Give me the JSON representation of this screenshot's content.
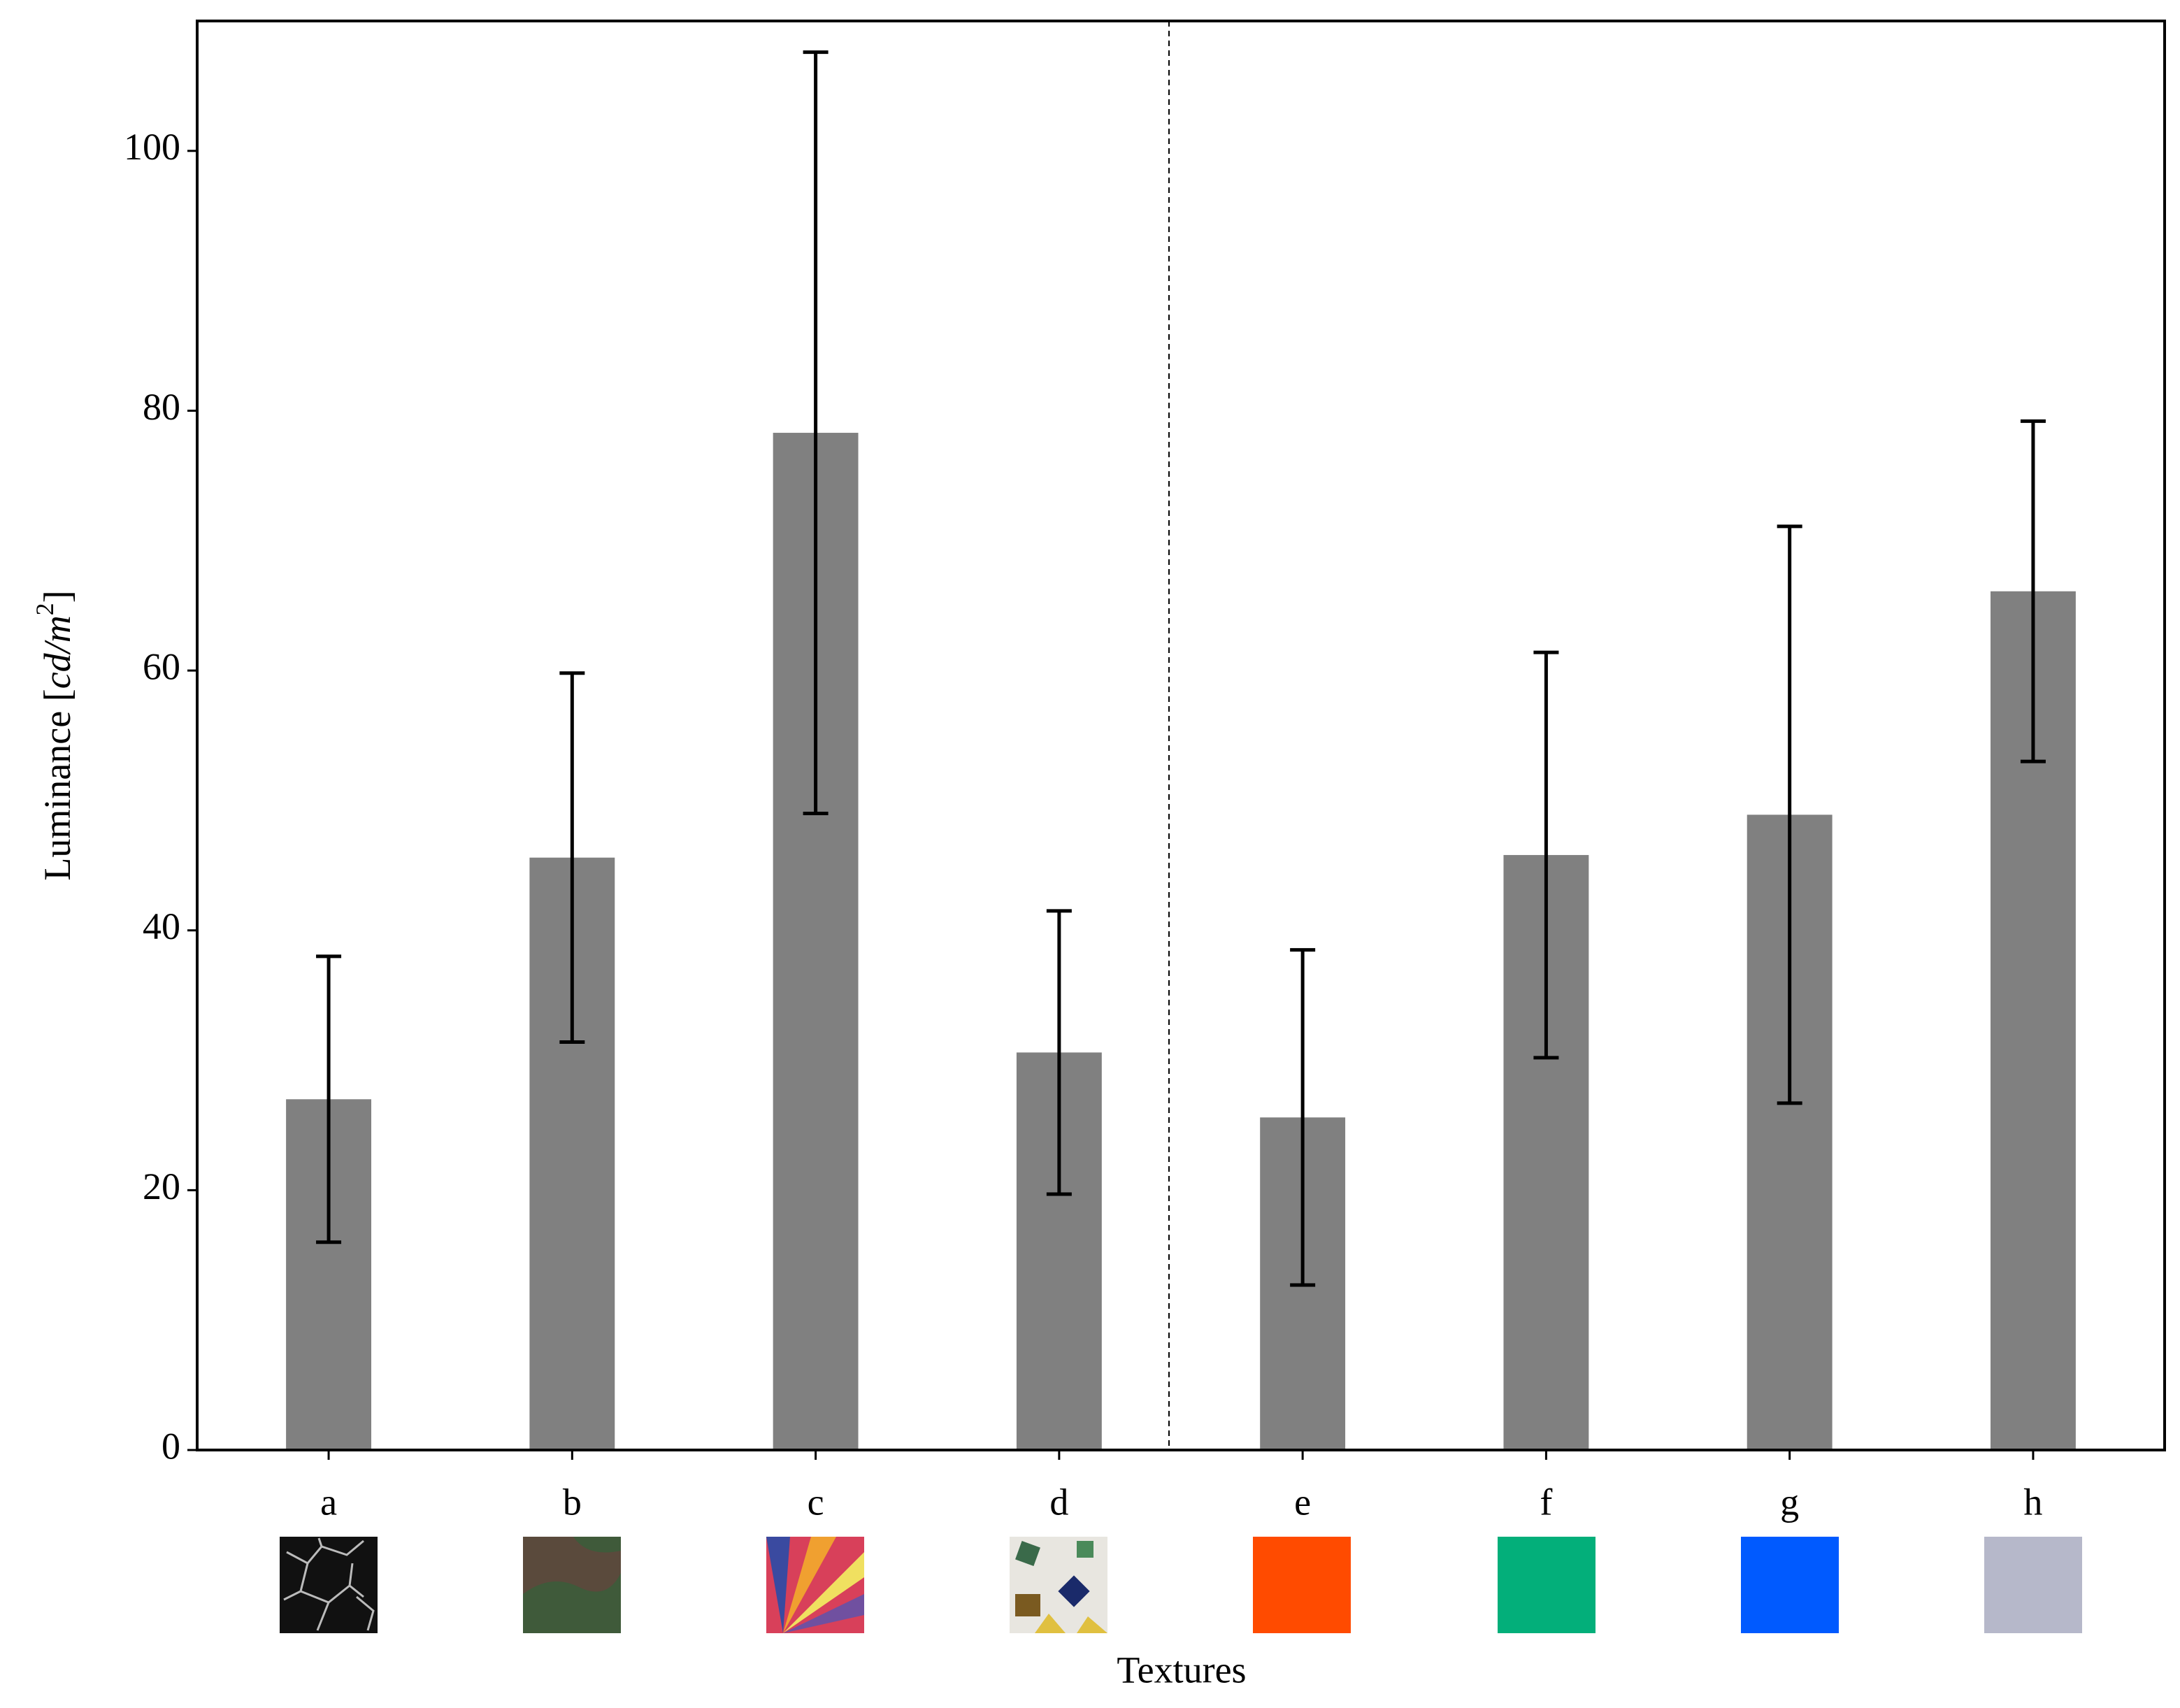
{
  "chart_data": {
    "type": "bar",
    "y_label": [
      "Luminance [",
      "cd/m",
      "2",
      "]"
    ],
    "x_label": "Textures",
    "categories": [
      "a",
      "b",
      "c",
      "d",
      "e",
      "f",
      "g",
      "h"
    ],
    "values": [
      27,
      45.6,
      78.3,
      30.6,
      25.6,
      45.8,
      48.9,
      66.1
    ],
    "errors": [
      11,
      14.2,
      29.3,
      10.9,
      12.9,
      15.6,
      22.2,
      13.1
    ],
    "color": "#808080",
    "ylim": [
      0,
      110
    ],
    "yticks": [
      0,
      20,
      40,
      60,
      80,
      100
    ],
    "grid": false
  }
}
